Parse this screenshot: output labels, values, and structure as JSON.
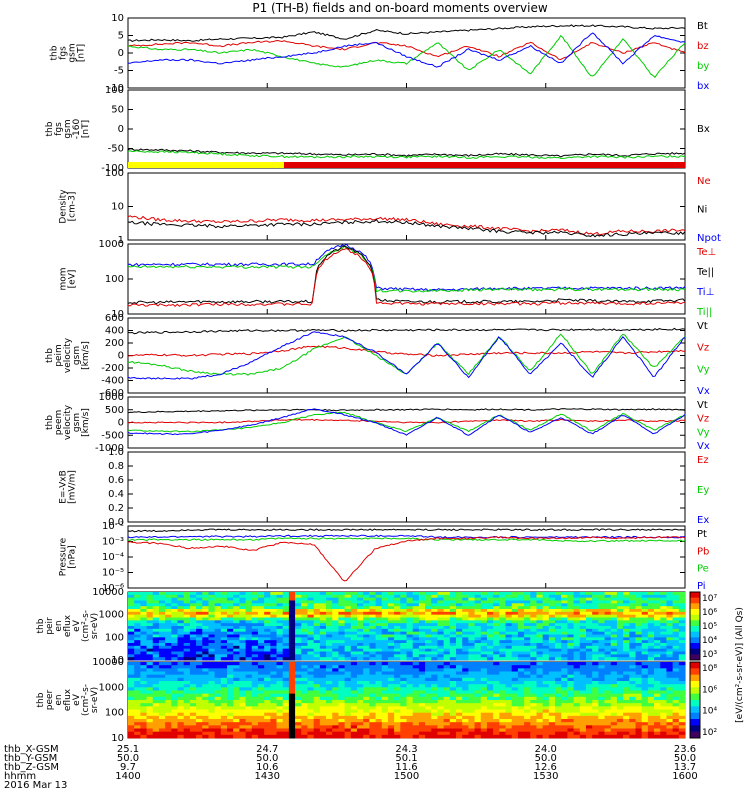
{
  "title": "P1 (TH-B) fields and on-board moments overview",
  "colors": {
    "black": "#000000",
    "red": "#e00000",
    "green": "#00cc00",
    "blue": "#0000ff",
    "yellow": "#ffff00"
  },
  "chart_data": [
    {
      "type": "line",
      "ylabel": [
        "thb",
        "fgs",
        "gsm",
        "[nT]"
      ],
      "ylim": [
        -10,
        10
      ],
      "ticks": [
        "10",
        "5",
        "0",
        "-5",
        "-10"
      ],
      "legend": [
        {
          "name": "Bt",
          "color": "#000000"
        },
        {
          "name": "bz",
          "color": "#e00000"
        },
        {
          "name": "by",
          "color": "#00cc00"
        },
        {
          "name": "bx",
          "color": "#0000ff"
        }
      ],
      "series": [
        {
          "name": "Bt",
          "color": "#000000",
          "values": [
            3.5,
            3.8,
            3.5,
            4.0,
            4.2,
            4.5,
            6,
            4,
            6.5,
            5.5,
            6,
            6.5,
            7,
            7.5,
            7.8,
            7.8,
            7.5,
            7,
            7.2
          ]
        },
        {
          "name": "bz",
          "color": "#e00000",
          "values": [
            2,
            2.5,
            3,
            2,
            3,
            3.5,
            2,
            1,
            3,
            2,
            -1,
            2,
            -1,
            3,
            -2,
            3,
            0,
            3,
            0
          ]
        },
        {
          "name": "by",
          "color": "#00cc00",
          "values": [
            2,
            1,
            1,
            0,
            1,
            -1,
            -3,
            -4,
            -2,
            -3,
            3,
            -5,
            1,
            -6,
            5,
            -7,
            4,
            -7,
            3
          ]
        },
        {
          "name": "bx",
          "color": "#0000ff",
          "values": [
            -3,
            -2,
            -2,
            -3,
            -2,
            -1,
            0,
            2,
            3,
            -1,
            -4,
            1,
            -2,
            2,
            -3,
            6,
            -3,
            5,
            3
          ]
        }
      ]
    },
    {
      "type": "line",
      "ylabel": [
        "thb",
        "fgs",
        "gsm",
        "-160",
        "[nT]"
      ],
      "ylim": [
        -150,
        100
      ],
      "ticks": [
        "100",
        "50",
        "0",
        "-50",
        "-100"
      ],
      "legend": [
        {
          "name": "Bx",
          "color": "#000000"
        }
      ],
      "series": [
        {
          "name": "Bx",
          "color": "#000000",
          "values": [
            -90,
            -92,
            -95,
            -100,
            -102,
            -103,
            -105,
            -108,
            -105,
            -110,
            -106,
            -110,
            -105,
            -108,
            -112,
            -105,
            -110,
            -104,
            -103
          ]
        },
        {
          "name": "Bx2",
          "color": "#00cc00",
          "values": [
            -96,
            -98,
            -100,
            -105,
            -110,
            -113,
            -115,
            -114,
            -113,
            -115,
            -113,
            -116,
            -114,
            -115,
            -118,
            -113,
            -116,
            -113,
            -112
          ]
        }
      ],
      "mode_bar": [
        {
          "from": 0,
          "to": 0.28,
          "color": "#ffff00"
        },
        {
          "from": 0.28,
          "to": 1,
          "color": "#e00000"
        }
      ]
    },
    {
      "type": "line",
      "yscale": "log",
      "ylabel": [
        "Density",
        "[cm-3]"
      ],
      "ylim": [
        1,
        200
      ],
      "ticks": [
        "100",
        "10",
        "1"
      ],
      "legend": [
        {
          "name": "Ne",
          "color": "#e00000"
        },
        {
          "name": "Ni",
          "color": "#000000"
        },
        {
          "name": "Npot",
          "color": "#0000ff"
        }
      ],
      "series": [
        {
          "name": "Ne",
          "color": "#e00000",
          "values": [
            6.5,
            5,
            4.5,
            4.2,
            4.5,
            5,
            4.8,
            5,
            5.5,
            5,
            3.5,
            3,
            2.5,
            2,
            2.2,
            1.6,
            2,
            2,
            2.2
          ]
        },
        {
          "name": "Ni",
          "color": "#000000",
          "values": [
            4,
            3.5,
            3.2,
            3,
            3.2,
            3.5,
            3.5,
            4,
            4.5,
            4,
            3,
            2.5,
            2,
            1.8,
            1.8,
            1.4,
            1.6,
            1.7,
            1.8
          ]
        }
      ]
    },
    {
      "type": "line",
      "yscale": "log",
      "ylabel": [
        "mom",
        "[eV]"
      ],
      "ylim": [
        10,
        5000
      ],
      "ticks": [
        "1000",
        "100",
        "10"
      ],
      "legend": [
        {
          "name": "Te⊥",
          "color": "#e00000"
        },
        {
          "name": "Te||",
          "color": "#000000"
        },
        {
          "name": "Ti⊥",
          "color": "#0000ff"
        },
        {
          "name": "Ti||",
          "color": "#00cc00"
        }
      ],
      "series": [
        {
          "name": "Ti⊥",
          "color": "#0000ff",
          "values": [
            800,
            820,
            830,
            830,
            830,
            840,
            840,
            4800,
            100,
            90,
            85,
            90,
            100,
            95,
            100,
            100,
            100,
            100,
            105
          ]
        },
        {
          "name": "Ti||",
          "color": "#00cc00",
          "values": [
            650,
            660,
            660,
            660,
            660,
            660,
            660,
            3800,
            80,
            75,
            80,
            85,
            90,
            85,
            90,
            90,
            90,
            90,
            90
          ]
        },
        {
          "name": "Te||",
          "color": "#000000",
          "values": [
            28,
            28,
            30,
            30,
            30,
            30,
            30,
            4000,
            35,
            30,
            30,
            30,
            30,
            30,
            35,
            32,
            30,
            32,
            34
          ]
        },
        {
          "name": "Te⊥",
          "color": "#e00000",
          "values": [
            22,
            22,
            23,
            24,
            24,
            24,
            24,
            3200,
            27,
            25,
            25,
            25,
            25,
            25,
            27,
            26,
            25,
            26,
            28
          ]
        }
      ]
    },
    {
      "type": "line",
      "ylabel": [
        "thb",
        "peim",
        "velocity",
        "gsm",
        "[km/s]"
      ],
      "ylim": [
        -600,
        600
      ],
      "ticks": [
        "600",
        "400",
        "200",
        "0",
        "-200",
        "-400",
        "-600"
      ],
      "legend": [
        {
          "name": "Vt",
          "color": "#000000"
        },
        {
          "name": "Vz",
          "color": "#e00000"
        },
        {
          "name": "Vy",
          "color": "#00cc00"
        },
        {
          "name": "Vx",
          "color": "#0000ff"
        }
      ],
      "series": [
        {
          "name": "Vt",
          "color": "#000000",
          "values": [
            360,
            370,
            380,
            390,
            400,
            400,
            405,
            400,
            405,
            405,
            410,
            410,
            410,
            410,
            410,
            420,
            410,
            420,
            420
          ]
        },
        {
          "name": "Vz",
          "color": "#e00000",
          "values": [
            0,
            10,
            0,
            20,
            30,
            80,
            150,
            120,
            60,
            20,
            0,
            20,
            40,
            40,
            40,
            60,
            40,
            60,
            80
          ]
        },
        {
          "name": "Vy",
          "color": "#00cc00",
          "values": [
            -100,
            -150,
            -250,
            -300,
            -300,
            -200,
            100,
            300,
            0,
            -300,
            200,
            -300,
            300,
            -250,
            350,
            -300,
            350,
            -200,
            300
          ]
        },
        {
          "name": "Vx",
          "color": "#0000ff",
          "values": [
            -350,
            -370,
            -370,
            -300,
            -100,
            150,
            380,
            300,
            50,
            -300,
            200,
            -350,
            300,
            -300,
            200,
            -350,
            300,
            -350,
            300
          ]
        }
      ]
    },
    {
      "type": "line",
      "ylabel": [
        "thb",
        "peem",
        "velocity",
        "gsm",
        "[km/s]"
      ],
      "ylim": [
        -1000,
        1000
      ],
      "ticks": [
        "1000",
        "500",
        "0",
        "-500",
        "-1000"
      ],
      "legend": [
        {
          "name": "Vt",
          "color": "#000000"
        },
        {
          "name": "Vz",
          "color": "#e00000"
        },
        {
          "name": "Vy",
          "color": "#00cc00"
        },
        {
          "name": "Vx",
          "color": "#0000ff"
        }
      ],
      "series": [
        {
          "name": "Vt",
          "color": "#000000",
          "values": [
            400,
            420,
            440,
            460,
            480,
            500,
            500,
            480,
            500,
            500,
            520,
            500,
            520,
            500,
            520,
            520,
            500,
            520,
            500
          ]
        },
        {
          "name": "Vz",
          "color": "#e00000",
          "values": [
            0,
            0,
            0,
            0,
            50,
            100,
            100,
            80,
            50,
            0,
            0,
            50,
            100,
            50,
            100,
            50,
            100,
            50,
            80
          ]
        },
        {
          "name": "Vy",
          "color": "#00cc00",
          "values": [
            -300,
            -350,
            -350,
            -300,
            -200,
            0,
            300,
            400,
            0,
            -350,
            200,
            -350,
            300,
            -300,
            350,
            -350,
            350,
            -300,
            300
          ]
        },
        {
          "name": "Vx",
          "color": "#0000ff",
          "values": [
            -400,
            -450,
            -450,
            -300,
            -100,
            200,
            550,
            300,
            0,
            -500,
            200,
            -500,
            300,
            -400,
            200,
            -450,
            300,
            -450,
            300
          ]
        }
      ]
    },
    {
      "type": "line",
      "ylabel": [
        "E=-VxB",
        "[mV/m]"
      ],
      "ylim": [
        0,
        1
      ],
      "ticks": [
        "1.0",
        "0.8",
        "0.6",
        "0.4",
        "0.2",
        "0.0"
      ],
      "legend": [
        {
          "name": "Ez",
          "color": "#e00000"
        },
        {
          "name": "Ey",
          "color": "#00cc00"
        },
        {
          "name": "Ex",
          "color": "#0000ff"
        }
      ],
      "series": []
    },
    {
      "type": "line",
      "yscale": "log",
      "ylabel": [
        "Pressure",
        "[nPa]"
      ],
      "ylim": [
        -6,
        -1
      ],
      "ticks": [
        "10⁻²",
        "10⁻³",
        "10⁻⁴",
        "10⁻⁵",
        "10⁻⁶"
      ],
      "legend": [
        {
          "name": "Pt",
          "color": "#000000"
        },
        {
          "name": "Pb",
          "color": "#e00000"
        },
        {
          "name": "Pe",
          "color": "#00cc00"
        },
        {
          "name": "Pi",
          "color": "#0000ff"
        }
      ],
      "series": [
        {
          "name": "Pt",
          "color": "#000000",
          "values": [
            -1.4,
            -1.4,
            -1.3,
            -1.3,
            -1.3,
            -1.3,
            -1.3,
            -1.3,
            -1.3,
            -1.3,
            -1.3,
            -1.3,
            -1.3,
            -1.3,
            -1.3,
            -1.3,
            -1.3,
            -1.3,
            -1.3
          ]
        },
        {
          "name": "Pi",
          "color": "#0000ff",
          "values": [
            -1.9,
            -1.9,
            -1.85,
            -1.85,
            -1.85,
            -1.8,
            -1.8,
            -1.8,
            -1.8,
            -1.8,
            -1.9,
            -1.9,
            -1.9,
            -1.9,
            -1.9,
            -1.9,
            -1.9,
            -1.9,
            -1.9
          ]
        },
        {
          "name": "Pe",
          "color": "#00cc00",
          "values": [
            -2.1,
            -2.1,
            -2.1,
            -2.1,
            -2.1,
            -2.0,
            -2.0,
            -2.0,
            -2.0,
            -2.0,
            -2.1,
            -2.1,
            -2.1,
            -2.1,
            -2.2,
            -2.2,
            -2.2,
            -2.2,
            -2.2
          ]
        },
        {
          "name": "Pb",
          "color": "#e00000",
          "values": [
            -2.3,
            -2.4,
            -2.8,
            -2.6,
            -3.0,
            -2.3,
            -2.5,
            -5.5,
            -2.8,
            -2.2,
            -2.0,
            -2.0,
            -1.9,
            -2.0,
            -2.0,
            -1.9,
            -2.0,
            -1.9,
            -1.9
          ]
        }
      ]
    },
    {
      "type": "heatmap",
      "ylabel": [
        "thb",
        "peir",
        "en",
        "eflux",
        "eV",
        "(cm²-s-",
        "sr-eV)"
      ],
      "ticks": [
        "10000",
        "1000",
        "100",
        "10"
      ]
    },
    {
      "type": "heatmap",
      "ylabel": [
        "thb",
        "peer",
        "en",
        "eflux",
        "eV",
        "(cm²-s-",
        "sr-eV)"
      ],
      "ticks": [
        "10000",
        "1000",
        "100",
        "10"
      ]
    }
  ],
  "colorbar": {
    "label": "[eV/(cm²-s-sr-eV)] (All Qs)",
    "ticks1": [
      "10⁷",
      "10⁶",
      "10⁵",
      "10⁴",
      "10³"
    ],
    "ticks2": [
      "10⁸",
      "10⁶",
      "10⁴",
      "10²"
    ]
  },
  "xaxis": {
    "ticks": [
      "25.1",
      "24.7",
      "24.3",
      "24.0",
      "23.6"
    ],
    "rows": [
      {
        "label": "thb_X-GSM",
        "values": [
          "25.1",
          "24.7",
          "24.3",
          "24.0",
          "23.6"
        ]
      },
      {
        "label": "thb_Y-GSM",
        "values": [
          "50.0",
          "50.0",
          "50.1",
          "50.0",
          "50.0"
        ]
      },
      {
        "label": "thb_Z-GSM",
        "values": [
          "9.7",
          "10.6",
          "11.6",
          "12.6",
          "13.7"
        ]
      },
      {
        "label": "hhmm",
        "values": [
          "1400",
          "1430",
          "1500",
          "1530",
          "1600"
        ]
      }
    ],
    "date": "2016 Mar 13"
  }
}
